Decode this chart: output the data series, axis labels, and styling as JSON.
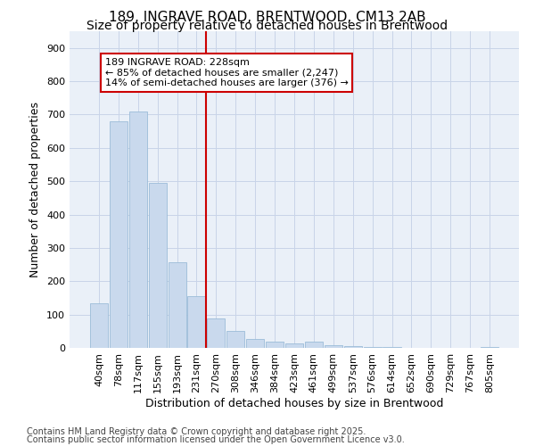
{
  "title1": "189, INGRAVE ROAD, BRENTWOOD, CM13 2AB",
  "title2": "Size of property relative to detached houses in Brentwood",
  "xlabel": "Distribution of detached houses by size in Brentwood",
  "ylabel": "Number of detached properties",
  "bar_labels": [
    "40sqm",
    "78sqm",
    "117sqm",
    "155sqm",
    "193sqm",
    "231sqm",
    "270sqm",
    "308sqm",
    "346sqm",
    "384sqm",
    "423sqm",
    "461sqm",
    "499sqm",
    "537sqm",
    "576sqm",
    "614sqm",
    "652sqm",
    "690sqm",
    "729sqm",
    "767sqm",
    "805sqm"
  ],
  "bar_values": [
    135,
    680,
    710,
    495,
    258,
    155,
    87,
    50,
    27,
    18,
    13,
    20,
    8,
    5,
    3,
    2,
    1,
    1,
    1,
    1,
    2
  ],
  "bar_color": "#c9d9ed",
  "bar_edge_color": "#9bbcd8",
  "vline_x": 5,
  "vline_color": "#cc0000",
  "annotation_text": "189 INGRAVE ROAD: 228sqm\n← 85% of detached houses are smaller (2,247)\n14% of semi-detached houses are larger (376) →",
  "annotation_box_color": "#cc0000",
  "ylim": [
    0,
    950
  ],
  "yticks": [
    0,
    100,
    200,
    300,
    400,
    500,
    600,
    700,
    800,
    900
  ],
  "grid_color": "#c8d4e8",
  "background_color": "#eaf0f8",
  "footer_line1": "Contains HM Land Registry data © Crown copyright and database right 2025.",
  "footer_line2": "Contains public sector information licensed under the Open Government Licence v3.0.",
  "title_fontsize": 11,
  "subtitle_fontsize": 10,
  "tick_fontsize": 8,
  "ylabel_fontsize": 9,
  "xlabel_fontsize": 9,
  "footer_fontsize": 7,
  "annotation_fontsize": 8
}
